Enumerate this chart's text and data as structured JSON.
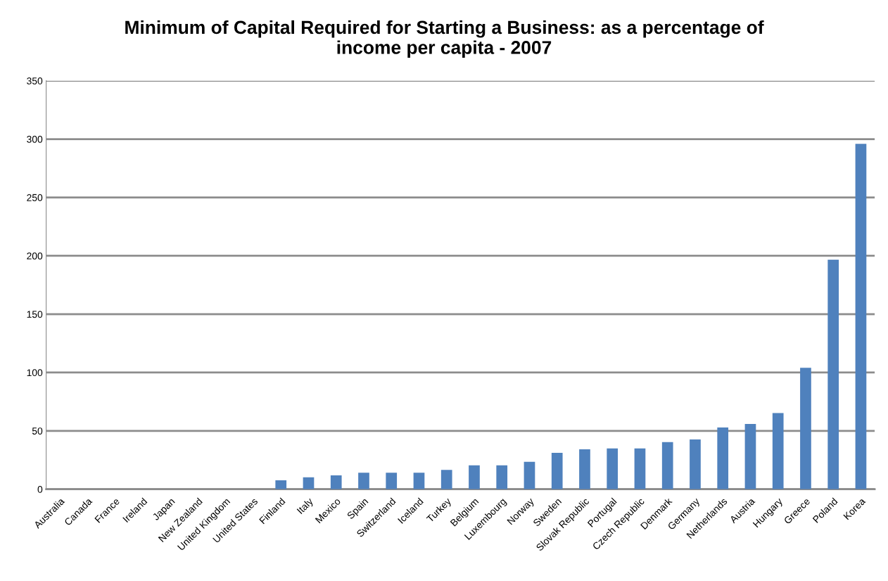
{
  "chart_data": {
    "type": "bar",
    "title": "Minimum of Capital Required for Starting a Business: as a percentage of\nincome per capita - 2007",
    "categories": [
      "Australia",
      "Canada",
      "France",
      "Ireland",
      "Japan",
      "New Zealand",
      "United Kingdom",
      "United States",
      "Finland",
      "Italy",
      "Mexico",
      "Spain",
      "Switzerland",
      "Iceland",
      "Turkey",
      "Belgium",
      "Luxembourg",
      "Norway",
      "Sweden",
      "Slovak Republic",
      "Portugal",
      "Czech Republic",
      "Denmark",
      "Germany",
      "Netherlands",
      "Austria",
      "Hungary",
      "Greece",
      "Poland",
      "Korea"
    ],
    "values": [
      0,
      0,
      0,
      0,
      0,
      0,
      0,
      0,
      7.6,
      10.2,
      11.9,
      14.1,
      14.1,
      14.1,
      16.5,
      20.5,
      20.5,
      23.5,
      31.1,
      34.2,
      35,
      35,
      40.4,
      42.6,
      52.9,
      55.9,
      65.2,
      104,
      196.7,
      295.9
    ],
    "color": "#4f81bd",
    "ylim": [
      0,
      350
    ],
    "yticks": [
      0,
      50,
      100,
      150,
      200,
      250,
      300,
      350
    ],
    "grid": "y",
    "legend": false
  }
}
